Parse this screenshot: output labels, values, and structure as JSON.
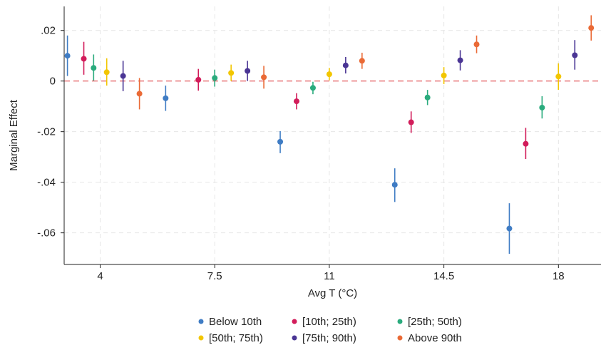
{
  "chart_data": {
    "type": "scatter",
    "subtype": "point-estimates-with-confidence-intervals",
    "title": "",
    "xlabel": "Avg T (°C)",
    "ylabel": "Marginal Effect",
    "xlim": [
      2.9,
      19.3
    ],
    "ylim": [
      -0.0725,
      0.0295
    ],
    "x_ticks": [
      4,
      7.5,
      11,
      14.5,
      18
    ],
    "x_tick_labels": [
      "4",
      "7.5",
      "11",
      "14.5",
      "18"
    ],
    "y_ticks": [
      0.02,
      0,
      -0.02,
      -0.04,
      -0.06
    ],
    "y_tick_labels": [
      ".02",
      "0",
      "-.02",
      "-.04",
      "-.06"
    ],
    "grid": true,
    "reference_line": {
      "y": 0,
      "style": "dashed",
      "color": "#e0474c"
    },
    "legend_position": "bottom",
    "series": [
      {
        "name": "Below 10th",
        "color": "#3f7cc4",
        "points": [
          {
            "x": 3.0,
            "y": 0.01,
            "lo": 0.002,
            "hi": 0.018
          },
          {
            "x": 6.0,
            "y": -0.0068,
            "lo": -0.0118,
            "hi": -0.0018
          },
          {
            "x": 9.5,
            "y": -0.024,
            "lo": -0.0285,
            "hi": -0.0198
          },
          {
            "x": 13.0,
            "y": -0.041,
            "lo": -0.0478,
            "hi": -0.0345
          },
          {
            "x": 16.5,
            "y": -0.0583,
            "lo": -0.0683,
            "hi": -0.0483
          }
        ]
      },
      {
        "name": "[10th; 25th)",
        "color": "#d21c5a",
        "points": [
          {
            "x": 3.5,
            "y": 0.0088,
            "lo": 0.0025,
            "hi": 0.0155
          },
          {
            "x": 7.0,
            "y": 0.0005,
            "lo": -0.0038,
            "hi": 0.0048
          },
          {
            "x": 10.0,
            "y": -0.008,
            "lo": -0.0112,
            "hi": -0.0048
          },
          {
            "x": 13.5,
            "y": -0.0163,
            "lo": -0.0205,
            "hi": -0.012
          },
          {
            "x": 17.0,
            "y": -0.0248,
            "lo": -0.0308,
            "hi": -0.0185
          }
        ]
      },
      {
        "name": "[25th; 50th)",
        "color": "#2aab7d",
        "points": [
          {
            "x": 3.8,
            "y": 0.0052,
            "lo": 0.0002,
            "hi": 0.0105
          },
          {
            "x": 7.5,
            "y": 0.0012,
            "lo": -0.0022,
            "hi": 0.0045
          },
          {
            "x": 10.5,
            "y": -0.0027,
            "lo": -0.0052,
            "hi": -0.0003
          },
          {
            "x": 14.0,
            "y": -0.0065,
            "lo": -0.0095,
            "hi": -0.0035
          },
          {
            "x": 17.5,
            "y": -0.0105,
            "lo": -0.0148,
            "hi": -0.006
          }
        ]
      },
      {
        "name": "[50th; 75th)",
        "color": "#f2c600",
        "points": [
          {
            "x": 4.2,
            "y": 0.0035,
            "lo": -0.0018,
            "hi": 0.009
          },
          {
            "x": 8.0,
            "y": 0.0032,
            "lo": 0.0,
            "hi": 0.0065
          },
          {
            "x": 11.0,
            "y": 0.0027,
            "lo": 0.0003,
            "hi": 0.0052
          },
          {
            "x": 14.5,
            "y": 0.0022,
            "lo": -0.0012,
            "hi": 0.0055
          },
          {
            "x": 18.0,
            "y": 0.0018,
            "lo": -0.0035,
            "hi": 0.007
          }
        ]
      },
      {
        "name": "[75th; 90th)",
        "color": "#4a3594",
        "points": [
          {
            "x": 4.7,
            "y": 0.002,
            "lo": -0.004,
            "hi": 0.008
          },
          {
            "x": 8.5,
            "y": 0.004,
            "lo": 0.0,
            "hi": 0.008
          },
          {
            "x": 11.5,
            "y": 0.0062,
            "lo": 0.003,
            "hi": 0.0095
          },
          {
            "x": 15.0,
            "y": 0.0082,
            "lo": 0.0042,
            "hi": 0.0122
          },
          {
            "x": 18.5,
            "y": 0.0102,
            "lo": 0.0045,
            "hi": 0.0162
          }
        ]
      },
      {
        "name": "Above 90th",
        "color": "#ea6a36",
        "points": [
          {
            "x": 5.2,
            "y": -0.005,
            "lo": -0.0112,
            "hi": 0.0012
          },
          {
            "x": 9.0,
            "y": 0.0015,
            "lo": -0.003,
            "hi": 0.006
          },
          {
            "x": 12.0,
            "y": 0.008,
            "lo": 0.0048,
            "hi": 0.0112
          },
          {
            "x": 15.5,
            "y": 0.0145,
            "lo": 0.011,
            "hi": 0.018
          },
          {
            "x": 19.0,
            "y": 0.021,
            "lo": 0.016,
            "hi": 0.026
          }
        ]
      }
    ]
  }
}
